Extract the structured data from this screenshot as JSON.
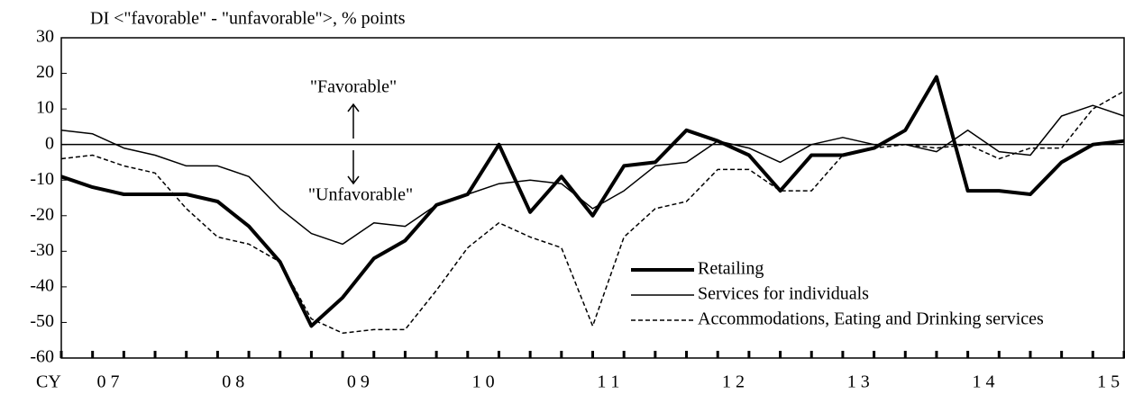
{
  "chart_data": {
    "type": "line",
    "y_label": "DI <\"favorable\" - \"unfavorable\">, % points",
    "x_label": "CY",
    "annotations": [
      "\"Favorable\"",
      "\"Unfavorable\""
    ],
    "categories": [
      null,
      "0 7",
      null,
      null,
      null,
      "0 8",
      null,
      null,
      null,
      "0 9",
      null,
      null,
      null,
      "1 0",
      null,
      null,
      null,
      "1 1",
      null,
      null,
      null,
      "1 2",
      null,
      null,
      null,
      "1 3",
      null,
      null,
      null,
      "1 4",
      null,
      null,
      null,
      "1 5",
      null
    ],
    "series": [
      {
        "name": "Retailing",
        "color": "#000000",
        "style": "thick",
        "values": [
          -9,
          -12,
          -14,
          -14,
          -14,
          -16,
          -23,
          -33,
          -51,
          -43,
          -32,
          -27,
          -17,
          -14,
          0,
          -19,
          -9,
          -20,
          -6,
          -5,
          4,
          1,
          -3,
          -13,
          -3,
          -3,
          -1,
          4,
          19,
          -13,
          -13,
          -14,
          -5,
          0,
          1
        ]
      },
      {
        "name": "Services for individuals",
        "color": "#000000",
        "style": "thin",
        "values": [
          4,
          3,
          -1,
          -3,
          -6,
          -6,
          -9,
          -18,
          -25,
          -28,
          -22,
          -23,
          -17,
          -14,
          -11,
          -10,
          -11,
          -18,
          -13,
          -6,
          -5,
          1,
          -1,
          -5,
          0,
          2,
          0,
          0,
          -2,
          4,
          -2,
          -3,
          8,
          11,
          8
        ]
      },
      {
        "name": "Accommodations, Eating and Drinking services",
        "color": "#000000",
        "style": "dashed",
        "values": [
          -4,
          -3,
          -6,
          -8,
          -18,
          -26,
          -28,
          -33,
          -49,
          -53,
          -52,
          -52,
          -41,
          -29,
          -22,
          -26,
          -29,
          -51,
          -26,
          -18,
          -16,
          -7,
          -7,
          -13,
          -13,
          -3,
          -1,
          0,
          -1,
          0,
          -4,
          -1,
          -1,
          10,
          15
        ]
      }
    ],
    "ylim": [
      -60,
      30
    ],
    "yticks": [
      -60,
      -50,
      -40,
      -30,
      -20,
      -10,
      0,
      10,
      20,
      30
    ],
    "zero_line": true
  }
}
